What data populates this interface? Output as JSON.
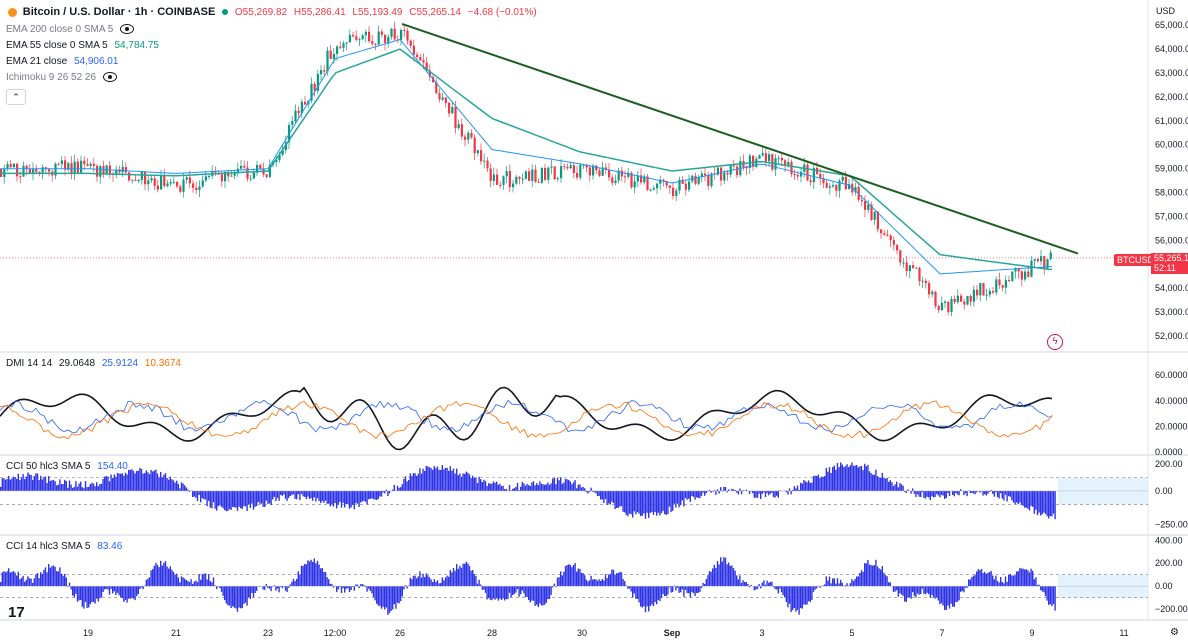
{
  "header": {
    "symbol": "Bitcoin / U.S. Dollar · 1h · COINBASE",
    "open": "O55,269.82",
    "high": "H55,286.41",
    "low": "L55,193.49",
    "close": "C55,265.14",
    "change": "−4.68 (−0.01%)"
  },
  "indicators": {
    "ema200": {
      "label": "EMA 200 close 0 SMA 5",
      "value": ""
    },
    "ema55": {
      "label": "EMA 55 close 0 SMA 5",
      "value": "54,784.75"
    },
    "ema21": {
      "label": "EMA 21 close",
      "value": "54,906.01"
    },
    "ichimoku": {
      "label": "Ichimoku 9 26 52 26",
      "value": ""
    }
  },
  "collapse_label": "⌃",
  "currency": "USD",
  "symbol_tag": "BTCUSD",
  "last_price": "55,265.1",
  "countdown": "52:11",
  "price_axis": [
    "65,000.00",
    "64,000.00",
    "63,000.00",
    "62,000.00",
    "61,000.00",
    "60,000.00",
    "59,000.00",
    "58,000.00",
    "57,000.00",
    "56,000.00",
    "54,000.00",
    "53,000.00",
    "52,000.00"
  ],
  "dmi": {
    "label": "DMI 14 14",
    "adx": "29.0648",
    "plus": "25.9124",
    "minus": "10.3674",
    "axis": [
      "60.0000",
      "40.0000",
      "20.0000",
      "0.0000"
    ]
  },
  "cci50": {
    "label": "CCI 50 hlc3 SMA 5",
    "value": "154.40",
    "axis": [
      "200.00",
      "0.00",
      "−250.00"
    ]
  },
  "cci14": {
    "label": "CCI 14 hlc3 SMA 5",
    "value": "83.46",
    "axis": [
      "400.00",
      "200.00",
      "0.00",
      "−200.00"
    ]
  },
  "time_axis": [
    "19",
    "21",
    "23",
    "12:00",
    "26",
    "28",
    "30",
    "Sep",
    "3",
    "5",
    "7",
    "9",
    "11"
  ],
  "logo": "17",
  "colors": {
    "up": "#089981",
    "down": "#f23645",
    "ema21": "#2196f3",
    "ema55": "#26a69a",
    "trendline": "#1b5e20",
    "adx": "#131722",
    "plus_di": "#2962ff",
    "minus_di": "#ff6d00",
    "cci": "#2f35e6"
  },
  "chart_data": {
    "type": "line",
    "title": "Bitcoin / U.S. Dollar · 1h · COINBASE",
    "ylim": [
      51500,
      65300
    ],
    "x": [
      "19",
      "21",
      "23",
      "12:00",
      "26",
      "28",
      "30",
      "Sep",
      "3",
      "5",
      "7",
      "9"
    ],
    "series": [
      {
        "name": "Price",
        "values": [
          59000,
          58300,
          59000,
          64300,
          64700,
          58500,
          58900,
          58100,
          59400,
          58200,
          53100,
          55265
        ]
      },
      {
        "name": "EMA 21 close",
        "values": [
          59000,
          58800,
          59000,
          63600,
          64400,
          59800,
          59200,
          58400,
          59200,
          58300,
          54600,
          54906
        ]
      },
      {
        "name": "EMA 55 close",
        "values": [
          58800,
          58700,
          58900,
          63000,
          64000,
          61100,
          59700,
          58900,
          59300,
          58700,
          55400,
          54785
        ]
      }
    ]
  }
}
